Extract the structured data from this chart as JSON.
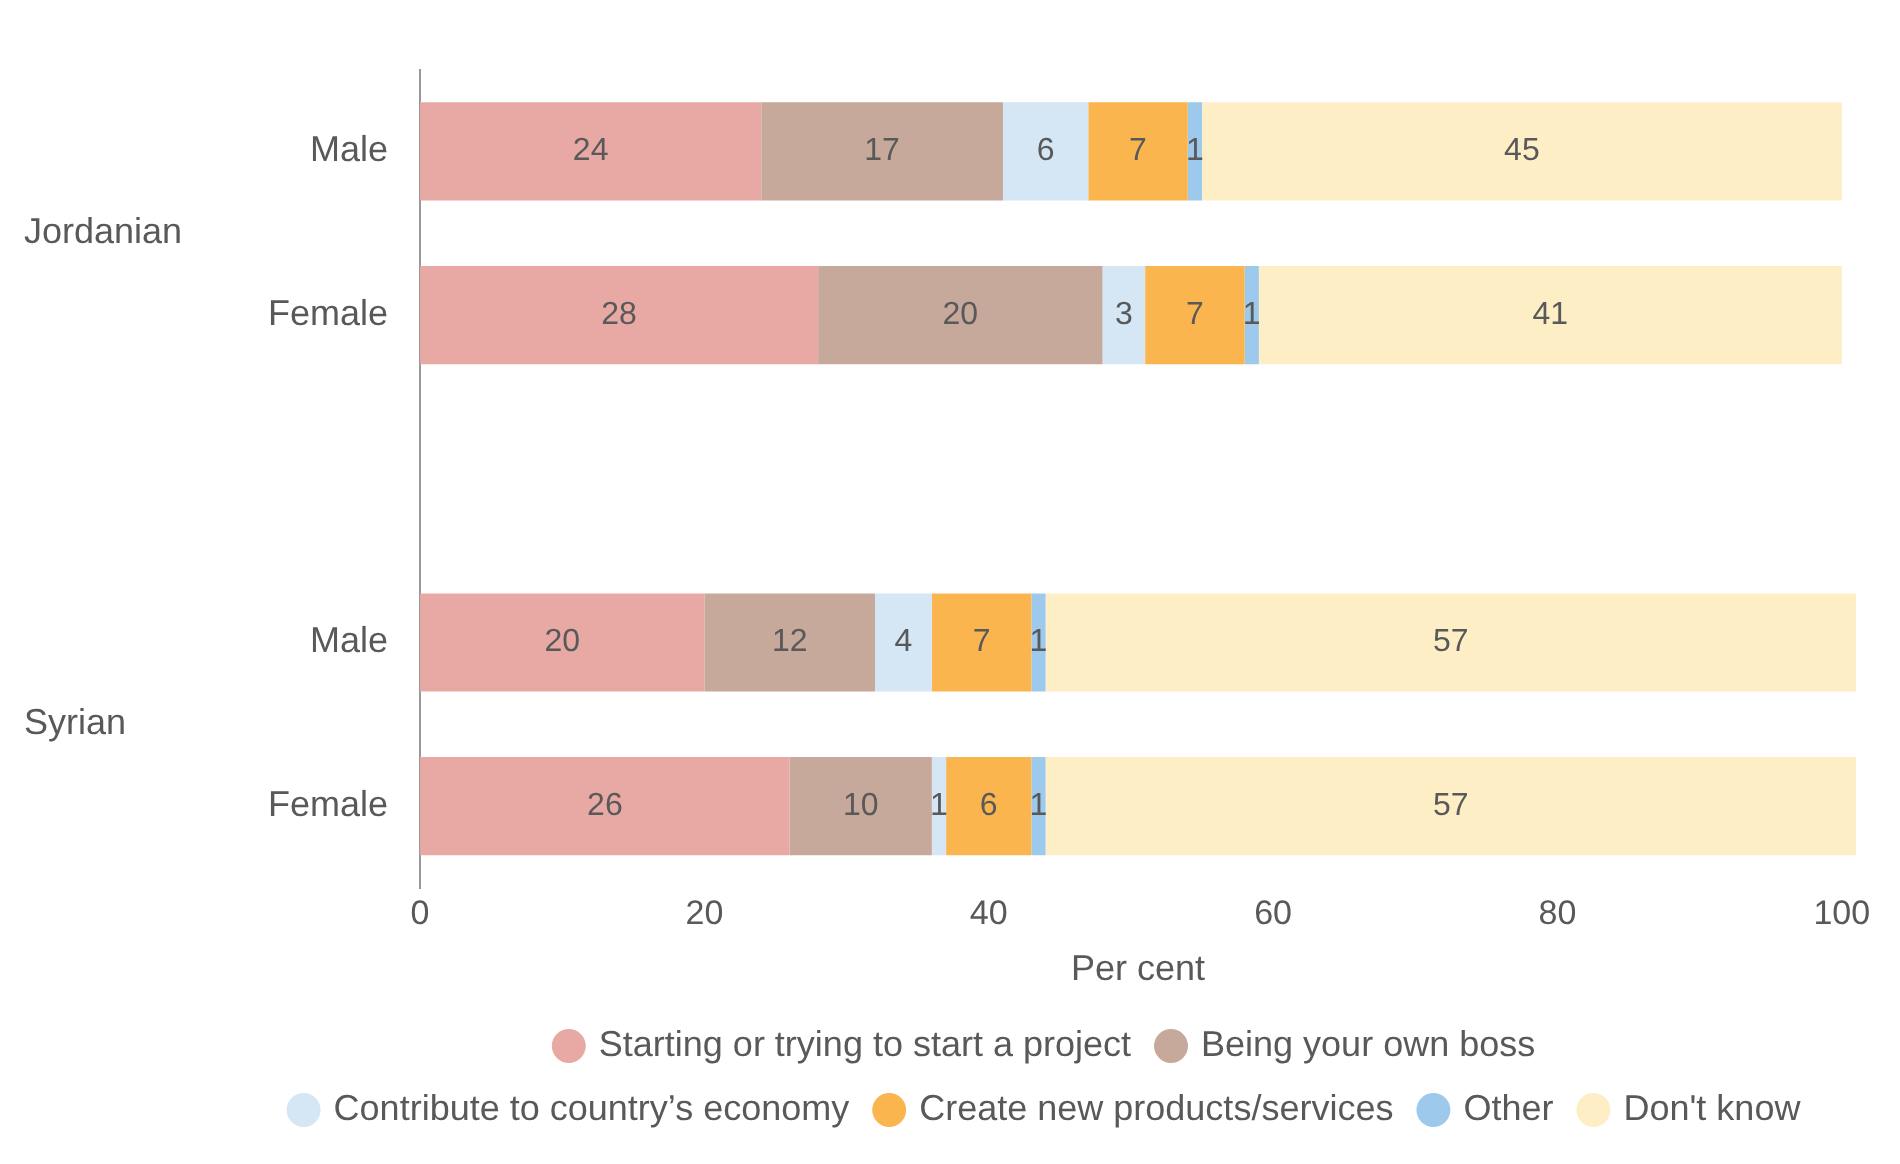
{
  "chart_data": {
    "type": "bar",
    "orientation": "horizontal",
    "stacked": true,
    "xlabel": "Per cent",
    "categories": [
      "Male",
      "Female",
      null,
      "Male",
      "Female"
    ],
    "annotations": [
      "Jordanian",
      "Syrian"
    ],
    "series": [
      {
        "name": "Starting or trying to start a project",
        "color": "#e8a9a5",
        "values": [
          24,
          28,
          null,
          20,
          26
        ]
      },
      {
        "name": "Being your own boss",
        "color": "#c6a99b",
        "values": [
          17,
          20,
          null,
          12,
          10
        ]
      },
      {
        "name": "Contribute to country’s economy",
        "color": "#d5e6f4",
        "values": [
          6,
          3,
          null,
          4,
          1
        ]
      },
      {
        "name": "Create new products/services",
        "color": "#fbb54f",
        "values": [
          7,
          7,
          null,
          7,
          6
        ]
      },
      {
        "name": "Other",
        "color": "#9dc9ec",
        "values": [
          1,
          1,
          null,
          1,
          1
        ]
      },
      {
        "name": "Don't know",
        "color": "#fdeec5",
        "values": [
          45,
          41,
          null,
          57,
          57
        ]
      }
    ],
    "xlim": [
      0,
      101
    ],
    "xticks": [
      0,
      20,
      40,
      60,
      80,
      100
    ],
    "data_labels": true,
    "grid": false,
    "legend": "bottom"
  }
}
